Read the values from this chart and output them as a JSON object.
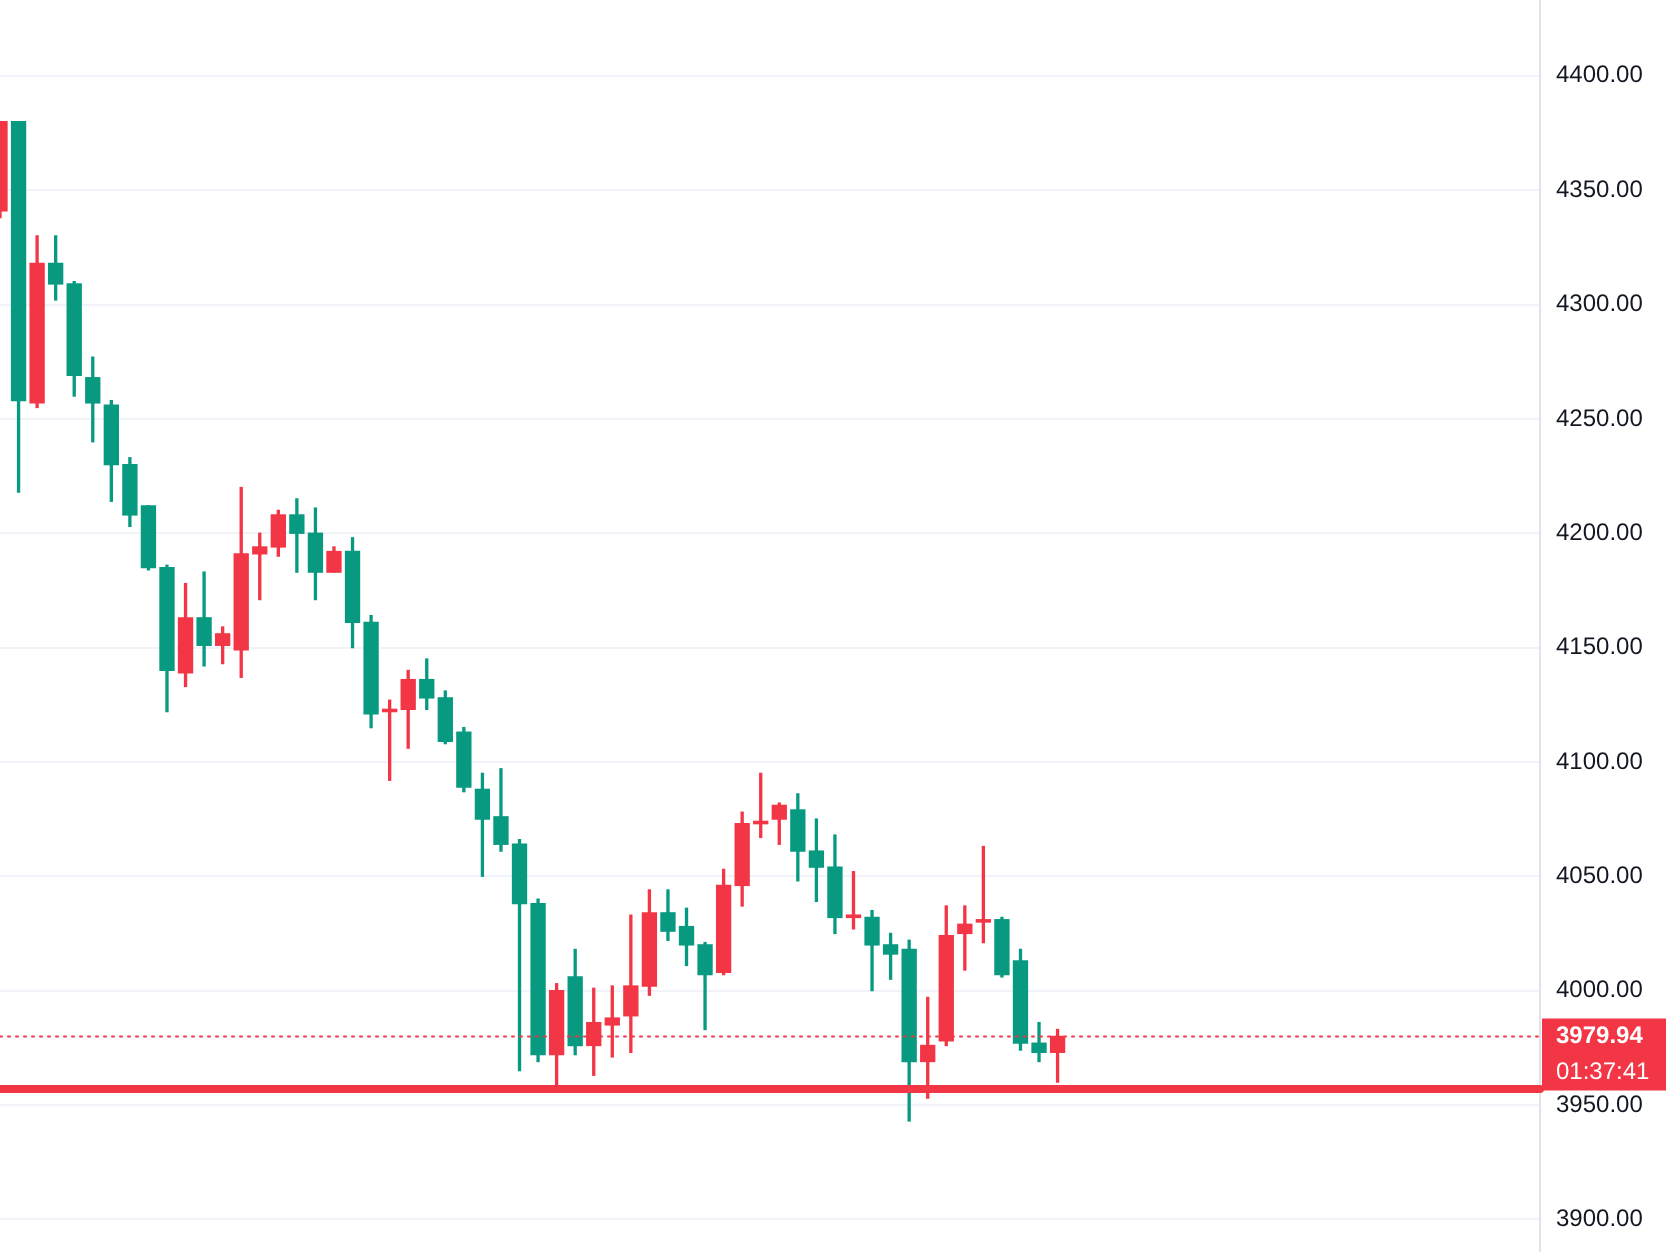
{
  "chart_data": {
    "type": "candlestick",
    "categories": [
      null,
      null,
      null,
      null,
      null,
      null,
      null,
      null,
      null,
      null,
      null,
      null,
      null,
      null,
      null,
      null,
      null,
      null,
      null,
      null,
      null,
      null,
      null,
      null,
      null,
      null,
      null,
      null,
      null,
      null,
      null,
      null,
      null,
      null,
      null,
      null,
      null,
      null,
      null,
      null,
      null,
      null,
      null,
      null,
      null,
      null,
      null,
      null,
      null,
      null,
      null,
      null,
      null,
      null,
      null,
      null,
      null,
      null,
      null,
      null,
      null,
      null,
      null,
      null,
      null,
      null,
      null,
      null,
      null,
      null,
      null,
      null,
      null,
      null,
      null,
      null,
      null,
      null,
      null,
      null,
      null,
      null,
      null,
      null
    ],
    "ohlc": [
      [
        4341,
        4380,
        4338,
        4380
      ],
      [
        4380,
        4380,
        4218,
        4258
      ],
      [
        4257,
        4330,
        4255,
        4318
      ],
      [
        4318,
        4330,
        4302,
        4309
      ],
      [
        4309,
        4310,
        4260,
        4269
      ],
      [
        4268,
        4277,
        4240,
        4257
      ],
      [
        4256,
        4258,
        4214,
        4230
      ],
      [
        4230,
        4233,
        4203,
        4208
      ],
      [
        4212,
        4212,
        4184,
        4185
      ],
      [
        4185,
        4186,
        4122,
        4140
      ],
      [
        4139,
        4178,
        4133,
        4163
      ],
      [
        4163,
        4183,
        4142,
        4151
      ],
      [
        4151,
        4159,
        4143,
        4156
      ],
      [
        4149,
        4220,
        4137,
        4191
      ],
      [
        4191,
        4200,
        4171,
        4194
      ],
      [
        4194,
        4210,
        4190,
        4208
      ],
      [
        4208,
        4215,
        4183,
        4200
      ],
      [
        4200,
        4211,
        4171,
        4183
      ],
      [
        4183,
        4194,
        4183,
        4192
      ],
      [
        4192,
        4198,
        4150,
        4161
      ],
      [
        4161,
        4164,
        4115,
        4121
      ],
      [
        4122,
        4127,
        4092,
        4123
      ],
      [
        4123,
        4140,
        4106,
        4136
      ],
      [
        4136,
        4145,
        4123,
        4128
      ],
      [
        4128,
        4131,
        4108,
        4109
      ],
      [
        4113,
        4115,
        4087,
        4089
      ],
      [
        4088,
        4095,
        4050,
        4075
      ],
      [
        4076,
        4097,
        4061,
        4064
      ],
      [
        4064,
        4066,
        3965,
        4038
      ],
      [
        4038,
        4040,
        3969,
        3972
      ],
      [
        3972,
        4003,
        3959,
        4000
      ],
      [
        4006,
        4018,
        3972,
        3976
      ],
      [
        3976,
        4001,
        3963,
        3986
      ],
      [
        3985,
        4002,
        3971,
        3988
      ],
      [
        3989,
        4033,
        3973,
        4002
      ],
      [
        4002,
        4044,
        3998,
        4034
      ],
      [
        4034,
        4044,
        4022,
        4026
      ],
      [
        4028,
        4036,
        4011,
        4020
      ],
      [
        4020,
        4021,
        3983,
        4007
      ],
      [
        4008,
        4053,
        4007,
        4046
      ],
      [
        4046,
        4078,
        4037,
        4073
      ],
      [
        4073,
        4095,
        4067,
        4074
      ],
      [
        4075,
        4082,
        4064,
        4081
      ],
      [
        4079,
        4086,
        4048,
        4061
      ],
      [
        4061,
        4075,
        4039,
        4054
      ],
      [
        4054,
        4068,
        4025,
        4032
      ],
      [
        4032,
        4052,
        4027,
        4033
      ],
      [
        4032,
        4035,
        4000,
        4020
      ],
      [
        4020,
        4025,
        4005,
        4016
      ],
      [
        4018,
        4022,
        3943,
        3969
      ],
      [
        3969,
        3997,
        3953,
        3976
      ],
      [
        3978,
        4037,
        3976,
        4024
      ],
      [
        4025,
        4037,
        4009,
        4029
      ],
      [
        4030,
        4063,
        4021,
        4031
      ],
      [
        4031,
        4032,
        4006,
        4007
      ],
      [
        4013,
        4018,
        3974,
        3977
      ],
      [
        3977,
        3986,
        3969,
        3973
      ],
      [
        3973,
        3983,
        3960,
        3979.94
      ],
      null,
      null,
      null,
      null,
      null,
      null,
      null,
      null,
      null,
      null,
      null,
      null,
      null,
      null,
      null,
      null,
      null,
      null,
      null,
      null,
      null,
      null,
      null,
      null,
      null,
      null
    ],
    "colors": [
      "#f23645",
      "#089981",
      "#f23645",
      "#089981",
      "#089981",
      "#089981",
      "#089981",
      "#089981",
      "#089981",
      "#089981",
      "#f23645",
      "#089981",
      "#f23645",
      "#f23645",
      "#f23645",
      "#f23645",
      "#089981",
      "#089981",
      "#f23645",
      "#089981",
      "#089981",
      "#f23645",
      "#f23645",
      "#089981",
      "#089981",
      "#089981",
      "#089981",
      "#089981",
      "#089981",
      "#089981",
      "#f23645",
      "#089981",
      "#f23645",
      "#f23645",
      "#f23645",
      "#f23645",
      "#089981",
      "#089981",
      "#089981",
      "#f23645",
      "#f23645",
      "#f23645",
      "#f23645",
      "#089981",
      "#089981",
      "#089981",
      "#f23645",
      "#089981",
      "#089981",
      "#089981",
      "#f23645",
      "#f23645",
      "#f23645",
      "#f23645",
      "#089981",
      "#089981",
      "#089981",
      "#f23645",
      null,
      null,
      null,
      null,
      null,
      null,
      null,
      null,
      null,
      null,
      null,
      null,
      null,
      null,
      null,
      null,
      null,
      null,
      null,
      null,
      null,
      null,
      null,
      null,
      null,
      null
    ],
    "ylim": [
      3885,
      4433
    ],
    "yticks": [
      {
        "value": 3900,
        "label": "3900.00"
      },
      {
        "value": 3950,
        "label": "3950.00"
      },
      {
        "value": 4000,
        "label": "4000.00"
      },
      {
        "value": 4050,
        "label": "4050.00"
      },
      {
        "value": 4100,
        "label": "4100.00"
      },
      {
        "value": 4150,
        "label": "4150.00"
      },
      {
        "value": 4200,
        "label": "4200.00"
      },
      {
        "value": 4250,
        "label": "4250.00"
      },
      {
        "value": 4300,
        "label": "4300.00"
      },
      {
        "value": 4350,
        "label": "4350.00"
      },
      {
        "value": 4400,
        "label": "4400.00"
      }
    ],
    "grid": "y",
    "legend": false,
    "ref_lines": [
      {
        "axis": "y",
        "value": 3979.94,
        "label": "3979.94",
        "color": "#f23645",
        "line_style": "dotted"
      },
      {
        "axis": "y",
        "value": 3957,
        "color": "#f23645",
        "line_style": "solid"
      }
    ],
    "annotations": [
      "01:37:41"
    ]
  }
}
